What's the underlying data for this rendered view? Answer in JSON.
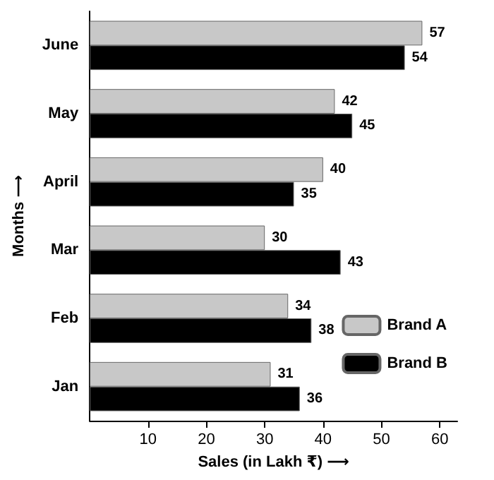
{
  "chart_data": {
    "type": "bar",
    "orientation": "horizontal",
    "xlabel": "Sales (in Lakh ₹) ⟶",
    "ylabel": "Months ⟶",
    "categories": [
      "June",
      "May",
      "April",
      "Mar",
      "Feb",
      "Jan"
    ],
    "series": [
      {
        "name": "Brand A",
        "color": "#c8c8c8",
        "values": [
          57,
          42,
          40,
          30,
          34,
          31
        ]
      },
      {
        "name": "Brand B",
        "color": "#000000",
        "values": [
          54,
          45,
          35,
          43,
          38,
          36
        ]
      }
    ],
    "xlim": [
      0,
      63
    ],
    "xticks": [
      10,
      20,
      30,
      40,
      50,
      60
    ],
    "data_labels": true,
    "grid": false,
    "legend": "bottom right"
  }
}
